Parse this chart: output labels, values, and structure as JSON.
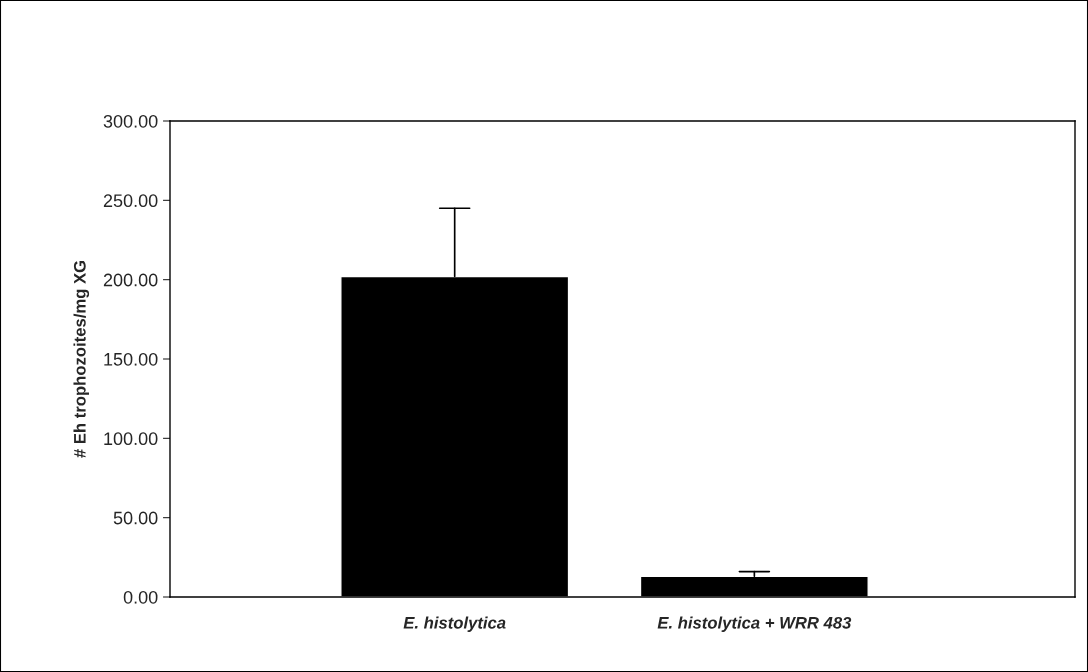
{
  "chart_data": {
    "type": "bar",
    "ylabel": "# Eh trophozoites/mg XG",
    "categories": [
      "E. histolytica",
      "E. histolytica + WRR 483"
    ],
    "values": [
      202,
      13
    ],
    "color": "#000000",
    "errors": [
      [
        202,
        245
      ],
      [
        13,
        16
      ]
    ],
    "ylim": [
      0,
      300
    ],
    "yticks": [
      {
        "value": 0,
        "label": "0.00"
      },
      {
        "value": 50,
        "label": "50.00"
      },
      {
        "value": 100,
        "label": "100.00"
      },
      {
        "value": 150,
        "label": "150.00"
      },
      {
        "value": 200,
        "label": "200.00"
      },
      {
        "value": 250,
        "label": "250.00"
      },
      {
        "value": 300,
        "label": "300.00"
      }
    ],
    "grid": false,
    "legend": false
  }
}
